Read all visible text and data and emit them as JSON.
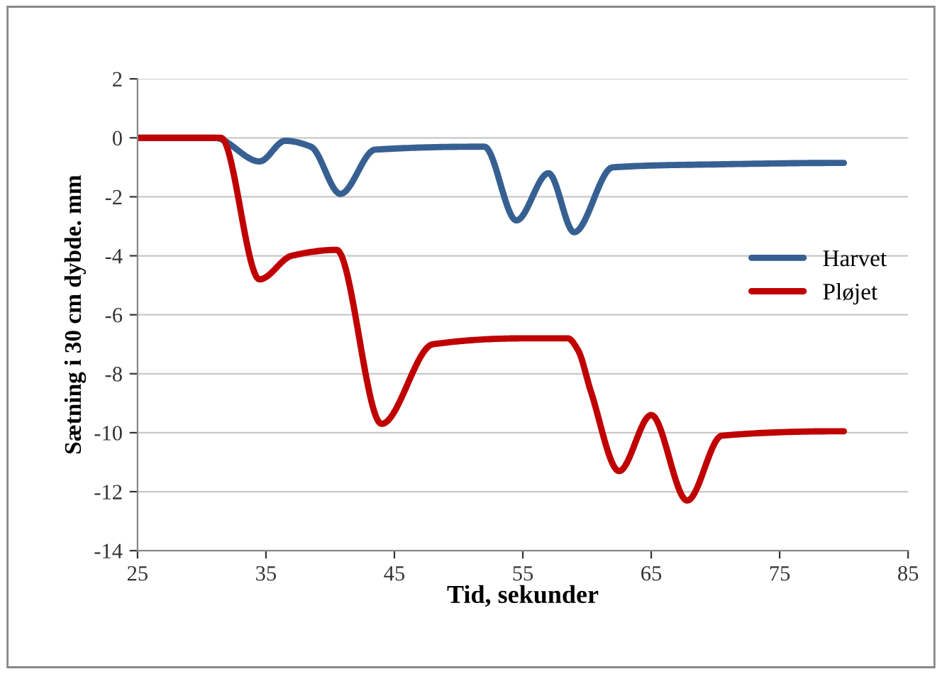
{
  "chart_data": {
    "type": "line",
    "xlabel": "Tid, sekunder",
    "ylabel": "Sætning i 30 cm dybde. mm",
    "xlim": [
      25,
      85
    ],
    "xticks": [
      25,
      35,
      45,
      55,
      65,
      75,
      85
    ],
    "ylim": [
      -14,
      2
    ],
    "yticks": [
      -14,
      -12,
      -10,
      -8,
      -6,
      -4,
      -2,
      0,
      2
    ],
    "grid": "y",
    "legend": "right",
    "marker": "none",
    "line_style": "solid",
    "series": [
      {
        "name": "Harvet",
        "color": "#376092",
        "x": [
          25,
          31,
          34.5,
          36.5,
          38.5,
          40.8,
          43.5,
          52,
          54.5,
          57,
          59,
          62,
          70,
          80
        ],
        "values": [
          0,
          0,
          -0.8,
          -0.1,
          -0.3,
          -1.9,
          -0.4,
          -0.3,
          -2.8,
          -1.2,
          -3.2,
          -1.0,
          -0.9,
          -0.85
        ]
      },
      {
        "name": "Pløjet",
        "color": "#c00000",
        "x": [
          25,
          31.5,
          34.5,
          37,
          40.5,
          44,
          48,
          55,
          58.5,
          59.3,
          60.3,
          62.5,
          65,
          67.8,
          70.5,
          80
        ],
        "values": [
          0,
          0,
          -4.8,
          -4.0,
          -3.8,
          -9.7,
          -7.0,
          -6.8,
          -6.8,
          -7.2,
          -8.6,
          -11.3,
          -9.4,
          -12.3,
          -10.1,
          -9.95
        ]
      }
    ]
  }
}
